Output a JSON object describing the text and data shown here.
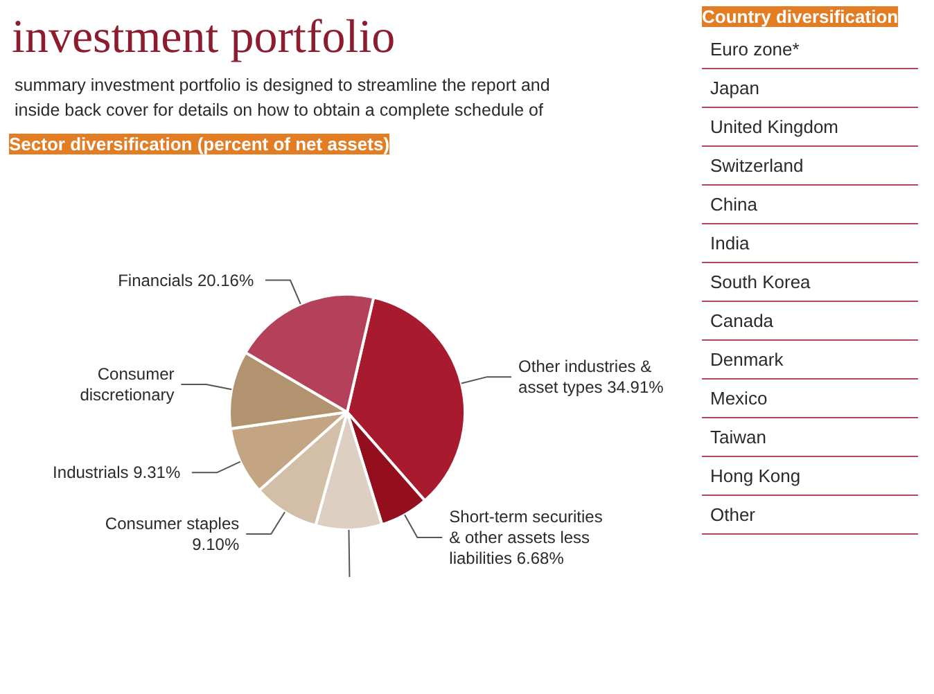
{
  "chart_data": [
    {
      "type": "other",
      "title": "investment portfolio",
      "annotations": [
        "summary investment portfolio is designed to streamline the report and",
        "inside back cover for details on how to obtain a complete schedule of"
      ]
    },
    {
      "type": "pie",
      "title": "Sector diversification (percent of net assets)",
      "categories": [
        "Other industries & asset types",
        "Short-term securities & other assets less liabilities",
        null,
        "Consumer staples",
        "Industrials",
        "Consumer discretionary",
        "Financials"
      ],
      "values": [
        34.91,
        6.68,
        9.1,
        9.1,
        9.31,
        10.7,
        20.16
      ],
      "colors": [
        "#a81b2f",
        "#930f1e",
        "#ddd0c3",
        "#d3bea7",
        "#c3a584",
        "#b1936f",
        "#b5405a"
      ],
      "value_labels": [
        "34.91%",
        "6.68%",
        null,
        "9.10%",
        "9.31%",
        null,
        "20.16%"
      ]
    },
    {
      "type": "other",
      "title": "Country diversification",
      "categories": [
        "Euro zone*",
        "Japan",
        "United Kingdom",
        "Switzerland",
        "China",
        "India",
        "South Korea",
        "Canada",
        "Denmark",
        "Mexico",
        "Taiwan",
        "Hong Kong",
        "Other"
      ]
    }
  ]
}
